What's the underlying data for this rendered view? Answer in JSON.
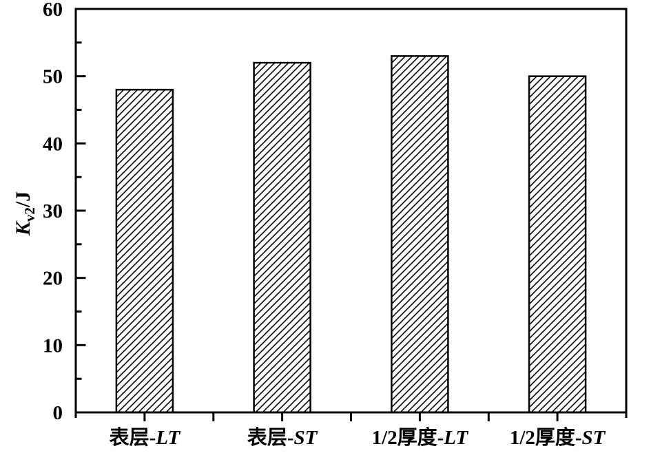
{
  "figure": {
    "background": "#ffffff",
    "line_color": "#000000"
  },
  "chart_data": {
    "type": "bar",
    "title": "",
    "categories": [
      {
        "label": "表层-LT",
        "prefix": "表层-",
        "italic": "LT"
      },
      {
        "label": "表层-ST",
        "prefix": "表层-",
        "italic": "ST"
      },
      {
        "label": "1/2厚度-LT",
        "prefix": "1/2厚度-",
        "italic": "LT"
      },
      {
        "label": "1/2厚度-ST",
        "prefix": "1/2厚度-",
        "italic": "ST"
      }
    ],
    "values": [
      48,
      52,
      53,
      50
    ],
    "xlabel": "",
    "ylabel": {
      "symbol": "K",
      "subscript": "v2",
      "unit_suffix": "/J",
      "full": "Kv2/J"
    },
    "ylim": [
      0,
      60
    ],
    "ytick_major_step": 10,
    "ytick_minor_step": 5,
    "ytick_labels": [
      "0",
      "10",
      "20",
      "30",
      "40",
      "50",
      "60"
    ],
    "grid": false,
    "legend": null,
    "bar_style": {
      "fill": "#ffffff",
      "hatch": "forward-diagonal",
      "stroke": "#000000"
    }
  }
}
